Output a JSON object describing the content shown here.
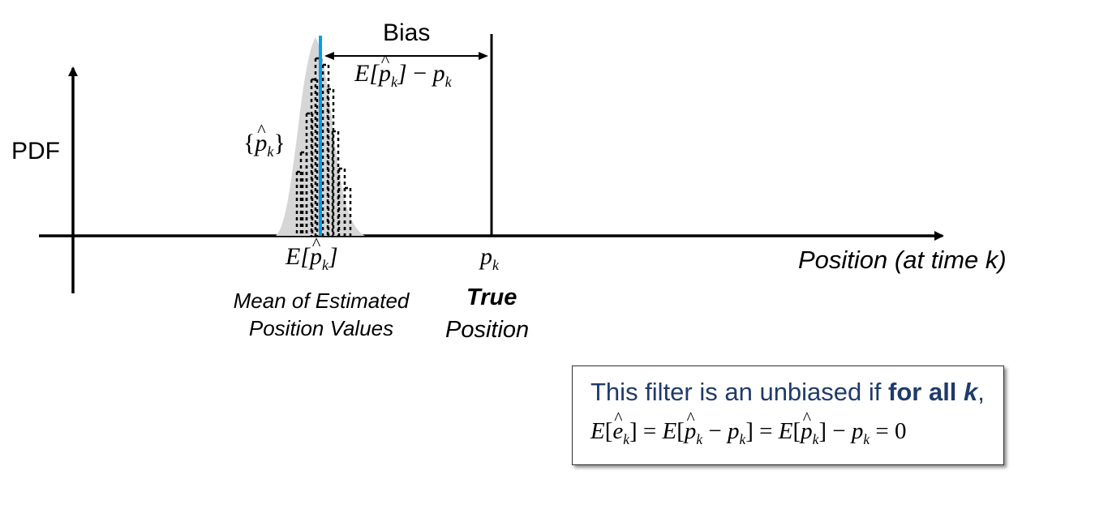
{
  "axes": {
    "y_label": "PDF",
    "x_label": "Position (at time k)"
  },
  "bias": {
    "label": "Bias"
  },
  "estimates_label": "{p̂k}",
  "mean": {
    "description_line1": "Mean of Estimated",
    "description_line2": "Position Values"
  },
  "true_position": {
    "title": "True",
    "subtitle": "Position"
  },
  "note": {
    "text_before": "This filter is an unbiased if ",
    "text_bold": "for all ",
    "text_bold_var": "k",
    "text_after": ","
  },
  "colors": {
    "mean_line": "#00a0e8",
    "distribution_fill": "#d6d6d6",
    "note_text": "#1f3b6b"
  }
}
